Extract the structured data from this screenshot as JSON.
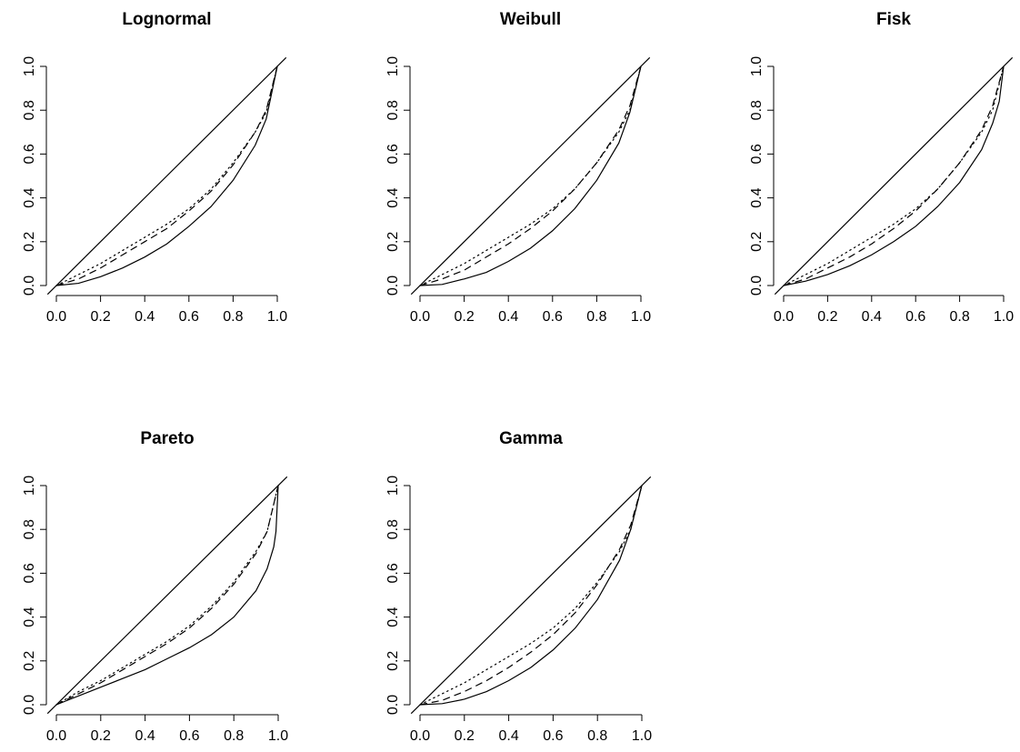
{
  "chart_data": [
    {
      "type": "line",
      "title": "Lognormal",
      "xlabel": "",
      "ylabel": "",
      "xlim": [
        0,
        1
      ],
      "ylim": [
        0,
        1
      ],
      "x_ticks": [
        "0.0",
        "0.2",
        "0.4",
        "0.6",
        "0.8",
        "1.0"
      ],
      "y_ticks": [
        "0.0",
        "0.2",
        "0.4",
        "0.6",
        "0.8",
        "1.0"
      ],
      "series": [
        {
          "style": "solid",
          "x": [
            0,
            1
          ],
          "y": [
            0,
            1
          ]
        },
        {
          "style": "solid",
          "x": [
            0,
            0.1,
            0.2,
            0.3,
            0.4,
            0.5,
            0.6,
            0.7,
            0.8,
            0.9,
            0.95,
            1.0
          ],
          "y": [
            0,
            0.01,
            0.04,
            0.08,
            0.13,
            0.19,
            0.27,
            0.36,
            0.48,
            0.64,
            0.76,
            1.0
          ]
        },
        {
          "style": "dashed",
          "x": [
            0,
            0.1,
            0.2,
            0.3,
            0.4,
            0.5,
            0.6,
            0.7,
            0.8,
            0.9,
            0.95,
            1.0
          ],
          "y": [
            0,
            0.03,
            0.08,
            0.14,
            0.2,
            0.26,
            0.34,
            0.43,
            0.55,
            0.7,
            0.8,
            1.0
          ]
        },
        {
          "style": "dotted",
          "x": [
            0,
            0.1,
            0.2,
            0.3,
            0.4,
            0.5,
            0.6,
            0.7,
            0.8,
            0.9,
            0.95,
            1.0
          ],
          "y": [
            0,
            0.05,
            0.1,
            0.16,
            0.22,
            0.28,
            0.35,
            0.44,
            0.56,
            0.7,
            0.79,
            1.0
          ]
        }
      ]
    },
    {
      "type": "line",
      "title": "Weibull",
      "xlabel": "",
      "ylabel": "",
      "xlim": [
        0,
        1
      ],
      "ylim": [
        0,
        1
      ],
      "x_ticks": [
        "0.0",
        "0.2",
        "0.4",
        "0.6",
        "0.8",
        "1.0"
      ],
      "y_ticks": [
        "0.0",
        "0.2",
        "0.4",
        "0.6",
        "0.8",
        "1.0"
      ],
      "series": [
        {
          "style": "solid",
          "x": [
            0,
            1
          ],
          "y": [
            0,
            1
          ]
        },
        {
          "style": "solid",
          "x": [
            0,
            0.1,
            0.2,
            0.3,
            0.4,
            0.5,
            0.6,
            0.7,
            0.8,
            0.9,
            0.95,
            1.0
          ],
          "y": [
            0,
            0.005,
            0.03,
            0.06,
            0.11,
            0.17,
            0.25,
            0.35,
            0.48,
            0.65,
            0.79,
            1.0
          ]
        },
        {
          "style": "dashed",
          "x": [
            0,
            0.1,
            0.2,
            0.3,
            0.4,
            0.5,
            0.6,
            0.7,
            0.8,
            0.9,
            0.95,
            1.0
          ],
          "y": [
            0,
            0.03,
            0.07,
            0.13,
            0.19,
            0.26,
            0.34,
            0.44,
            0.56,
            0.71,
            0.82,
            1.0
          ]
        },
        {
          "style": "dotted",
          "x": [
            0,
            0.1,
            0.2,
            0.3,
            0.4,
            0.5,
            0.6,
            0.7,
            0.8,
            0.9,
            0.95,
            1.0
          ],
          "y": [
            0,
            0.05,
            0.1,
            0.16,
            0.22,
            0.28,
            0.35,
            0.44,
            0.56,
            0.7,
            0.8,
            1.0
          ]
        }
      ]
    },
    {
      "type": "line",
      "title": "Fisk",
      "xlabel": "",
      "ylabel": "",
      "xlim": [
        0,
        1
      ],
      "ylim": [
        0,
        1
      ],
      "x_ticks": [
        "0.0",
        "0.2",
        "0.4",
        "0.6",
        "0.8",
        "1.0"
      ],
      "y_ticks": [
        "0.0",
        "0.2",
        "0.4",
        "0.6",
        "0.8",
        "1.0"
      ],
      "series": [
        {
          "style": "solid",
          "x": [
            0,
            0.1,
            0.2,
            0.3,
            0.4,
            0.5,
            0.6,
            0.7,
            0.8,
            0.9,
            0.95,
            0.98,
            1.0
          ],
          "y": [
            0,
            0.02,
            0.05,
            0.09,
            0.14,
            0.2,
            0.27,
            0.36,
            0.47,
            0.62,
            0.74,
            0.84,
            1.0
          ]
        },
        {
          "style": "dashed",
          "x": [
            0,
            0.1,
            0.2,
            0.3,
            0.4,
            0.5,
            0.6,
            0.7,
            0.8,
            0.9,
            0.95,
            1.0
          ],
          "y": [
            0,
            0.03,
            0.08,
            0.13,
            0.19,
            0.26,
            0.34,
            0.44,
            0.56,
            0.71,
            0.82,
            1.0
          ]
        },
        {
          "style": "dotted",
          "x": [
            0,
            0.1,
            0.2,
            0.3,
            0.4,
            0.5,
            0.6,
            0.7,
            0.8,
            0.9,
            0.95,
            1.0
          ],
          "y": [
            0,
            0.05,
            0.1,
            0.16,
            0.22,
            0.28,
            0.35,
            0.44,
            0.56,
            0.7,
            0.8,
            1.0
          ]
        },
        {
          "style": "solid",
          "x": [
            0,
            1
          ],
          "y": [
            0,
            1
          ]
        }
      ]
    },
    {
      "type": "line",
      "title": "Pareto",
      "xlabel": "",
      "ylabel": "",
      "xlim": [
        0,
        1
      ],
      "ylim": [
        0,
        1
      ],
      "x_ticks": [
        "0.0",
        "0.2",
        "0.4",
        "0.6",
        "0.8",
        "1.0"
      ],
      "y_ticks": [
        "0.0",
        "0.2",
        "0.4",
        "0.6",
        "0.8",
        "1.0"
      ],
      "series": [
        {
          "style": "solid",
          "x": [
            0,
            1
          ],
          "y": [
            0,
            1
          ]
        },
        {
          "style": "solid",
          "x": [
            0,
            0.1,
            0.2,
            0.3,
            0.4,
            0.5,
            0.6,
            0.7,
            0.8,
            0.9,
            0.95,
            0.98,
            0.99,
            1.0
          ],
          "y": [
            0,
            0.04,
            0.08,
            0.12,
            0.16,
            0.21,
            0.26,
            0.32,
            0.4,
            0.52,
            0.62,
            0.72,
            0.79,
            1.0
          ]
        },
        {
          "style": "dashed",
          "x": [
            0,
            0.1,
            0.2,
            0.3,
            0.4,
            0.5,
            0.6,
            0.7,
            0.8,
            0.9,
            0.95,
            1.0
          ],
          "y": [
            0,
            0.05,
            0.1,
            0.16,
            0.22,
            0.28,
            0.35,
            0.44,
            0.55,
            0.69,
            0.79,
            1.0
          ]
        },
        {
          "style": "dotted",
          "x": [
            0,
            0.1,
            0.2,
            0.3,
            0.4,
            0.5,
            0.6,
            0.7,
            0.8,
            0.9,
            0.95,
            1.0
          ],
          "y": [
            0,
            0.06,
            0.11,
            0.17,
            0.23,
            0.29,
            0.36,
            0.45,
            0.56,
            0.7,
            0.79,
            1.0
          ]
        }
      ]
    },
    {
      "type": "line",
      "title": "Gamma",
      "xlabel": "",
      "ylabel": "",
      "xlim": [
        0,
        1
      ],
      "ylim": [
        0,
        1
      ],
      "x_ticks": [
        "0.0",
        "0.2",
        "0.4",
        "0.6",
        "0.8",
        "1.0"
      ],
      "y_ticks": [
        "0.0",
        "0.2",
        "0.4",
        "0.6",
        "0.8",
        "1.0"
      ],
      "series": [
        {
          "style": "solid",
          "x": [
            0,
            1
          ],
          "y": [
            0,
            1
          ]
        },
        {
          "style": "solid",
          "x": [
            0,
            0.1,
            0.2,
            0.3,
            0.4,
            0.5,
            0.6,
            0.7,
            0.8,
            0.9,
            0.95,
            1.0
          ],
          "y": [
            0,
            0.005,
            0.025,
            0.06,
            0.11,
            0.17,
            0.25,
            0.35,
            0.48,
            0.66,
            0.8,
            1.0
          ]
        },
        {
          "style": "dashed",
          "x": [
            0,
            0.1,
            0.2,
            0.3,
            0.4,
            0.5,
            0.6,
            0.7,
            0.8,
            0.9,
            0.95,
            1.0
          ],
          "y": [
            0,
            0.02,
            0.06,
            0.11,
            0.17,
            0.24,
            0.32,
            0.42,
            0.55,
            0.71,
            0.82,
            1.0
          ]
        },
        {
          "style": "dotted",
          "x": [
            0,
            0.1,
            0.2,
            0.3,
            0.4,
            0.5,
            0.6,
            0.7,
            0.8,
            0.9,
            0.95,
            1.0
          ],
          "y": [
            0,
            0.05,
            0.1,
            0.16,
            0.22,
            0.28,
            0.35,
            0.44,
            0.56,
            0.7,
            0.8,
            1.0
          ]
        }
      ]
    }
  ]
}
